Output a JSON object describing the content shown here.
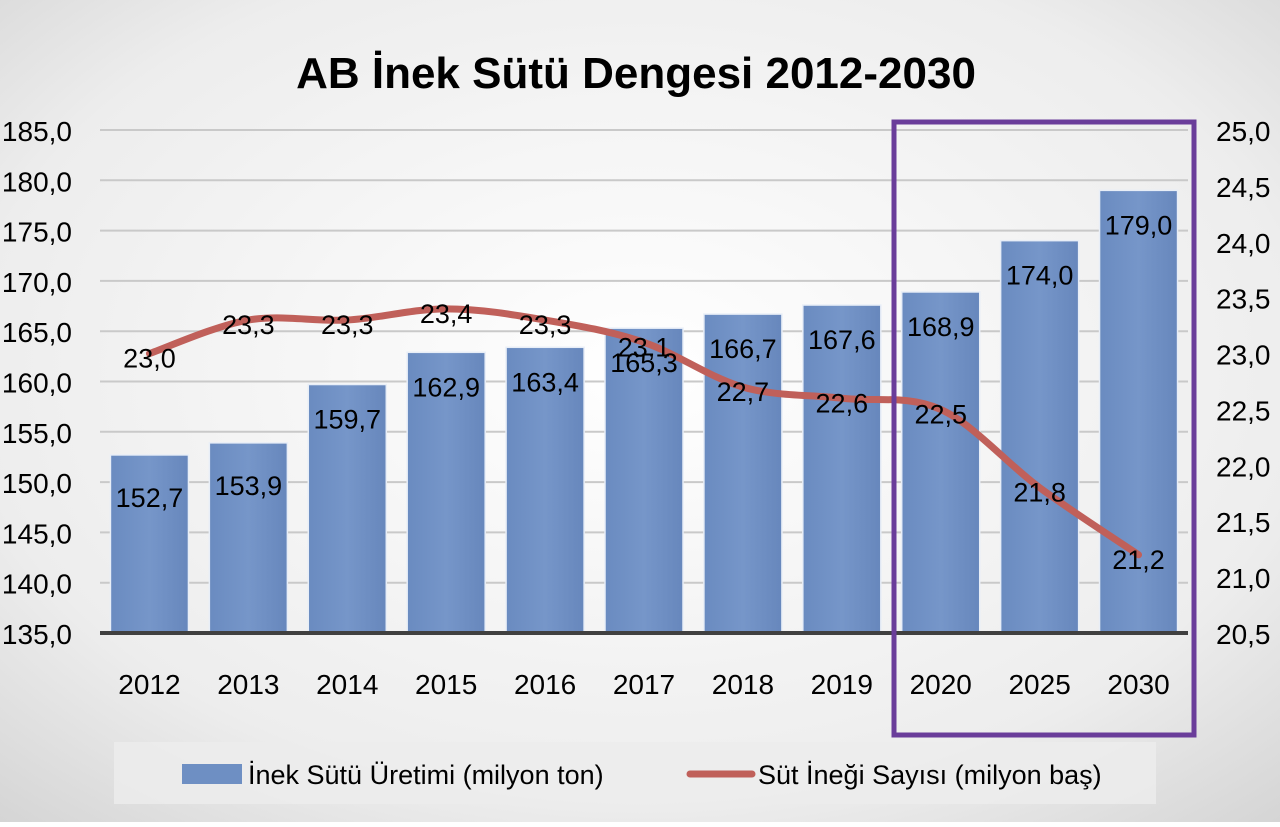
{
  "chart_data": {
    "type": "bar",
    "title": "AB İnek Sütü Dengesi 2012-2030",
    "categories": [
      "2012",
      "2013",
      "2014",
      "2015",
      "2016",
      "2017",
      "2018",
      "2019",
      "2020",
      "2025",
      "2030"
    ],
    "series": [
      {
        "name": "İnek Sütü Üretimi (milyon ton)",
        "type": "bar",
        "axis": "left",
        "color": "#6e8fc3",
        "values": [
          152.7,
          153.9,
          159.7,
          162.9,
          163.4,
          165.3,
          166.7,
          167.6,
          168.9,
          174.0,
          179.0
        ],
        "labels": [
          "152,7",
          "153,9",
          "159,7",
          "162,9",
          "163,4",
          "165,3",
          "166,7",
          "167,6",
          "168,9",
          "174,0",
          "179,0"
        ]
      },
      {
        "name": "Süt İneği Sayısı (milyon baş)",
        "type": "line",
        "axis": "right",
        "color": "#c0605a",
        "values": [
          23.0,
          23.3,
          23.3,
          23.4,
          23.3,
          23.1,
          22.7,
          22.6,
          22.5,
          21.8,
          21.2
        ],
        "labels": [
          "23,0",
          "23,3",
          "23,3",
          "23,4",
          "23,3",
          "23,1",
          "22,7",
          "22,6",
          "22,5",
          "21,8",
          "21,2"
        ]
      }
    ],
    "left_axis": {
      "ylim": [
        135,
        185
      ],
      "ticks": [
        "185,0",
        "180,0",
        "175,0",
        "170,0",
        "165,0",
        "160,0",
        "155,0",
        "150,0",
        "145,0",
        "140,0",
        "135,0"
      ]
    },
    "right_axis": {
      "ylim": [
        20.5,
        25.0
      ],
      "ticks": [
        "25,0",
        "24,5",
        "24,0",
        "23,5",
        "23,0",
        "22,5",
        "22,0",
        "21,5",
        "21,0",
        "20,5"
      ]
    },
    "grid": true,
    "legend_position": "bottom",
    "highlight": {
      "categories": [
        "2020",
        "2025",
        "2030"
      ],
      "color": "#6a3d9a"
    },
    "xlabel": "",
    "ylabel": ""
  }
}
